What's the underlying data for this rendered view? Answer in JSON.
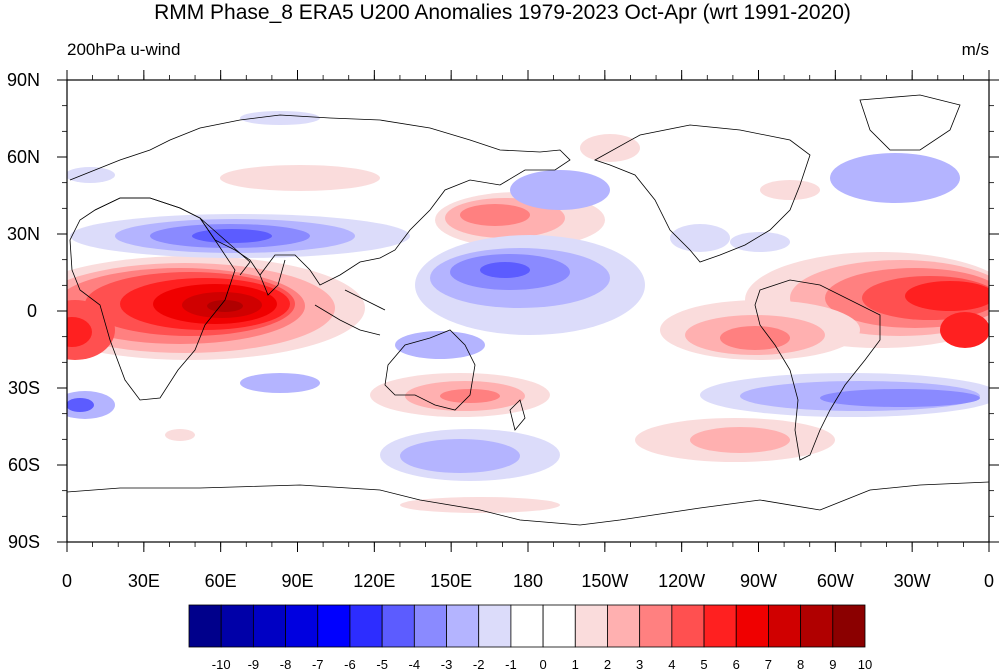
{
  "title": "RMM Phase_8 ERA5 U200 Anomalies 1979-2023 Oct-Apr (wrt 1991-2020)",
  "left_label": "200hPa u-wind",
  "right_label": "m/s",
  "lat_labels": [
    "90N",
    "60N",
    "30N",
    "0",
    "30S",
    "60S",
    "90S"
  ],
  "lon_labels": [
    "0",
    "30E",
    "60E",
    "90E",
    "120E",
    "150E",
    "180",
    "150W",
    "120W",
    "90W",
    "60W",
    "30W",
    "0"
  ],
  "colorbar": {
    "labels": [
      "-10",
      "-9",
      "-8",
      "-7",
      "-6",
      "-5",
      "-4",
      "-3",
      "-2",
      "-1",
      "0",
      "1",
      "2",
      "3",
      "4",
      "5",
      "6",
      "7",
      "8",
      "9",
      "10"
    ],
    "colors": [
      "#00008b",
      "#0000a8",
      "#0000c4",
      "#0000e0",
      "#0000ff",
      "#2d2dff",
      "#5c5cff",
      "#8a8aff",
      "#b4b4ff",
      "#dcdcfa",
      "#ffffff",
      "#ffffff",
      "#fadcdc",
      "#ffb0b0",
      "#ff8080",
      "#ff5050",
      "#ff2020",
      "#f00000",
      "#d00000",
      "#b00000",
      "#8b0000"
    ]
  }
}
